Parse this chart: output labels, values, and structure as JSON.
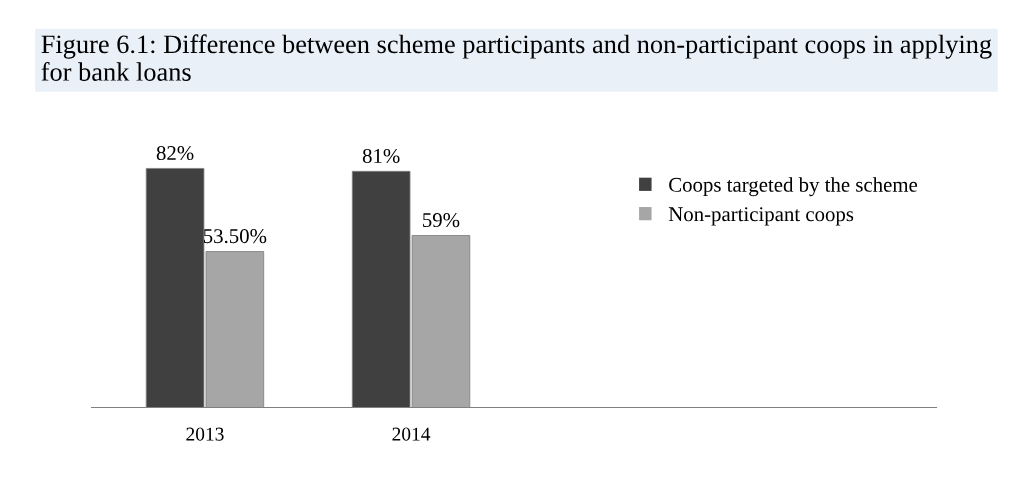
{
  "chart_data": {
    "type": "bar",
    "title": "Figure 6.1: Difference between scheme participants and non-participant coops in applying for bank loans",
    "categories": [
      "2013",
      "2014"
    ],
    "series": [
      {
        "name": "Coops targeted by the scheme",
        "color": "#404040",
        "values": [
          82,
          81
        ],
        "value_labels": [
          "82%",
          "81%"
        ]
      },
      {
        "name": "Non-participant coops",
        "color": "#a6a6a6",
        "values": [
          53.5,
          59
        ],
        "value_labels": [
          "53.50%",
          "59%"
        ]
      }
    ],
    "legend": "right",
    "grid": false
  }
}
